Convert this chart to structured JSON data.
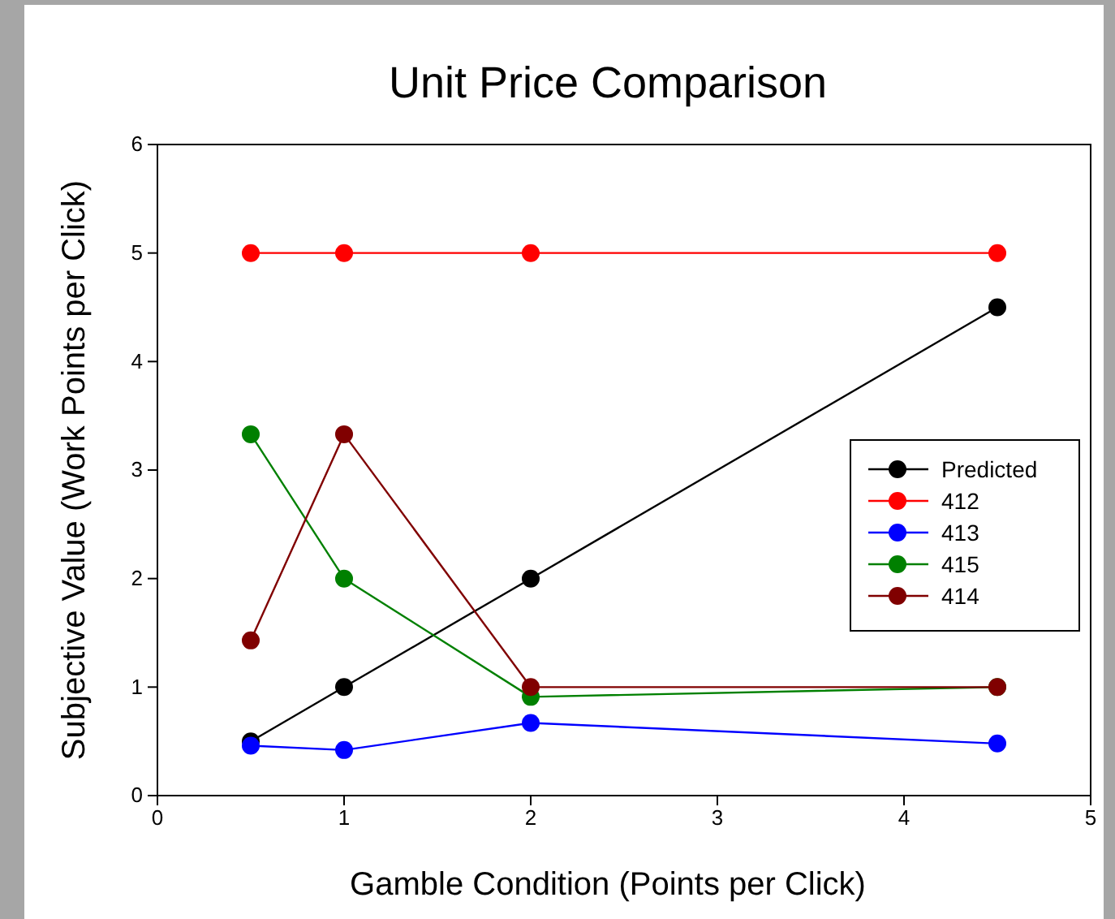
{
  "chart_data": {
    "type": "line",
    "title": "Unit Price Comparison",
    "xlabel": "Gamble Condition (Points per Click)",
    "ylabel": "Subjective Value (Work Points per Click)",
    "x": [
      0.5,
      1,
      2,
      4.5
    ],
    "series": [
      {
        "name": "Predicted",
        "color": "#000000",
        "values": [
          0.5,
          1,
          2,
          4.5
        ]
      },
      {
        "name": "412",
        "color": "#ff0000",
        "values": [
          5,
          5,
          5,
          5
        ]
      },
      {
        "name": "413",
        "color": "#0000ff",
        "values": [
          0.46,
          0.42,
          0.67,
          0.48
        ]
      },
      {
        "name": "415",
        "color": "#008000",
        "values": [
          3.33,
          2.0,
          0.91,
          1.0
        ]
      },
      {
        "name": "414",
        "color": "#800000",
        "values": [
          1.43,
          3.33,
          1.0,
          1.0
        ]
      }
    ],
    "xlim": [
      0,
      5
    ],
    "xticks": [
      0,
      1,
      2,
      3,
      4,
      5
    ],
    "ylim": [
      0,
      6
    ],
    "yticks": [
      0,
      1,
      2,
      3,
      4,
      5,
      6
    ],
    "grid": false,
    "legend": "right",
    "marker": "circle",
    "line_style": "solid"
  }
}
